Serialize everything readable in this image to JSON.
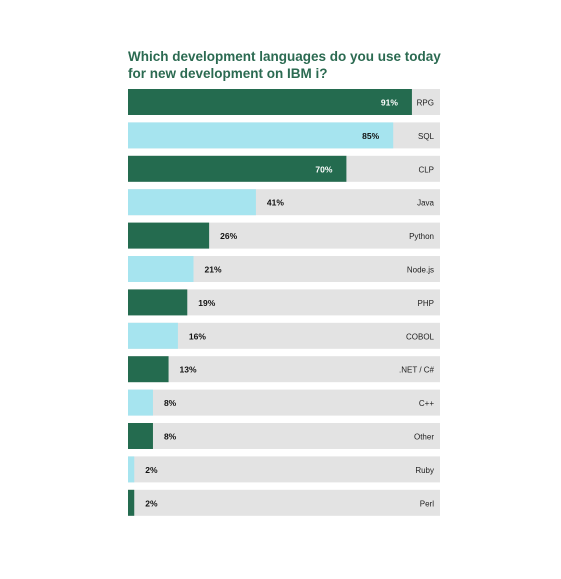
{
  "title": "Which development languages do you use today for new development on IBM i?",
  "colors": {
    "dark": "#246b4f",
    "light": "#a6e4ef",
    "track": "#e3e3e3",
    "title": "#2b6a51"
  },
  "chart_data": {
    "type": "bar",
    "orientation": "horizontal",
    "title": "Which development languages do you use today for new development on IBM i?",
    "xlim": [
      0,
      100
    ],
    "unit": "%",
    "categories": [
      "RPG",
      "SQL",
      "CLP",
      "Java",
      "Python",
      "Node.js",
      "PHP",
      "COBOL",
      ".NET / C#",
      "C++",
      "Other",
      "Ruby",
      "Perl"
    ],
    "values": [
      91,
      85,
      70,
      41,
      26,
      21,
      19,
      16,
      13,
      8,
      8,
      2,
      2
    ],
    "labels": [
      "91%",
      "85%",
      "70%",
      "41%",
      "26%",
      "21%",
      "19%",
      "16%",
      "13%",
      "8%",
      "8%",
      "2%",
      "2%"
    ],
    "bar_colors": [
      "dark",
      "light",
      "dark",
      "light",
      "dark",
      "light",
      "dark",
      "light",
      "dark",
      "light",
      "dark",
      "light",
      "dark"
    ]
  }
}
